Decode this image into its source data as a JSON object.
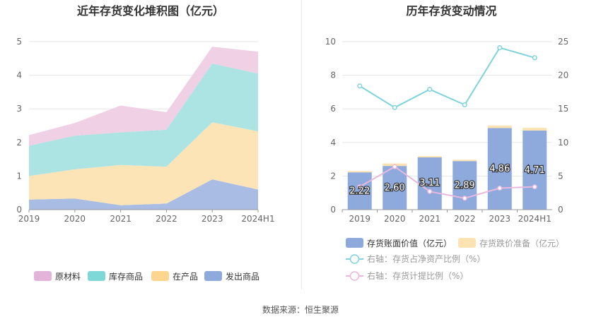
{
  "left_title": "近年存货变化堆积图（亿元）",
  "right_title": "历年存货变动情况",
  "footer": "数据来源：恒生聚源",
  "chart_data": [
    {
      "type": "area",
      "title": "近年存货变化堆积图（亿元）",
      "categories": [
        "2019",
        "2020",
        "2021",
        "2022",
        "2023",
        "2024H1"
      ],
      "ylim": [
        0,
        5
      ],
      "yticks": [
        0,
        1,
        2,
        3,
        4,
        5
      ],
      "stacked": true,
      "grid": true,
      "legend_position": "bottom",
      "series": [
        {
          "name": "发出商品",
          "color": "#a3b8e3",
          "values": [
            0.3,
            0.33,
            0.13,
            0.18,
            0.9,
            0.6
          ]
        },
        {
          "name": "在产品",
          "color": "#fde3b2",
          "values": [
            0.7,
            0.87,
            1.2,
            1.1,
            1.7,
            1.73
          ]
        },
        {
          "name": "库存商品",
          "color": "#a8e3e3",
          "values": [
            0.9,
            1.0,
            0.97,
            1.1,
            1.75,
            1.72
          ]
        },
        {
          "name": "原材料",
          "color": "#eecde3",
          "values": [
            0.32,
            0.38,
            0.8,
            0.52,
            0.5,
            0.65
          ]
        }
      ],
      "legend_order": [
        "原材料",
        "库存商品",
        "在产品",
        "发出商品"
      ],
      "legend_colors": {
        "原材料": "#e3b3da",
        "库存商品": "#7fd8d8",
        "在产品": "#fcd68e",
        "发出商品": "#8eaadd"
      }
    },
    {
      "type": "bar",
      "title": "历年存货变动情况",
      "categories": [
        "2019",
        "2020",
        "2021",
        "2022",
        "2023",
        "2024H1"
      ],
      "ylim": [
        0,
        10
      ],
      "yticks": [
        0,
        2,
        4,
        6,
        8,
        10
      ],
      "y2lim": [
        0,
        25
      ],
      "y2ticks": [
        0,
        5,
        10,
        15,
        20,
        25
      ],
      "grid": true,
      "legend_position": "bottom",
      "series": [
        {
          "name": "存货账面价值（亿元）",
          "kind": "bar",
          "color": "#8eaadd",
          "axis": "left",
          "values": [
            2.22,
            2.6,
            3.11,
            2.89,
            4.86,
            4.71
          ],
          "labels": [
            "2.22",
            "2.60",
            "3.11",
            "2.89",
            "4.86",
            "4.71"
          ]
        },
        {
          "name": "存货跌价准备（亿元）",
          "kind": "bar",
          "color": "#fde3b2",
          "axis": "left",
          "values": [
            0.08,
            0.15,
            0.08,
            0.08,
            0.15,
            0.16
          ]
        },
        {
          "name": "右轴：存货占净资产比例（%）",
          "kind": "line",
          "color": "#7fd3db",
          "axis": "right",
          "values": [
            18.4,
            15.2,
            17.9,
            15.6,
            24.1,
            22.6
          ]
        },
        {
          "name": "右轴：存货计提比例（%）",
          "kind": "line",
          "color": "#e8b8dd",
          "axis": "right",
          "values": [
            3.4,
            6.4,
            2.7,
            1.7,
            3.2,
            3.4
          ]
        }
      ]
    }
  ]
}
